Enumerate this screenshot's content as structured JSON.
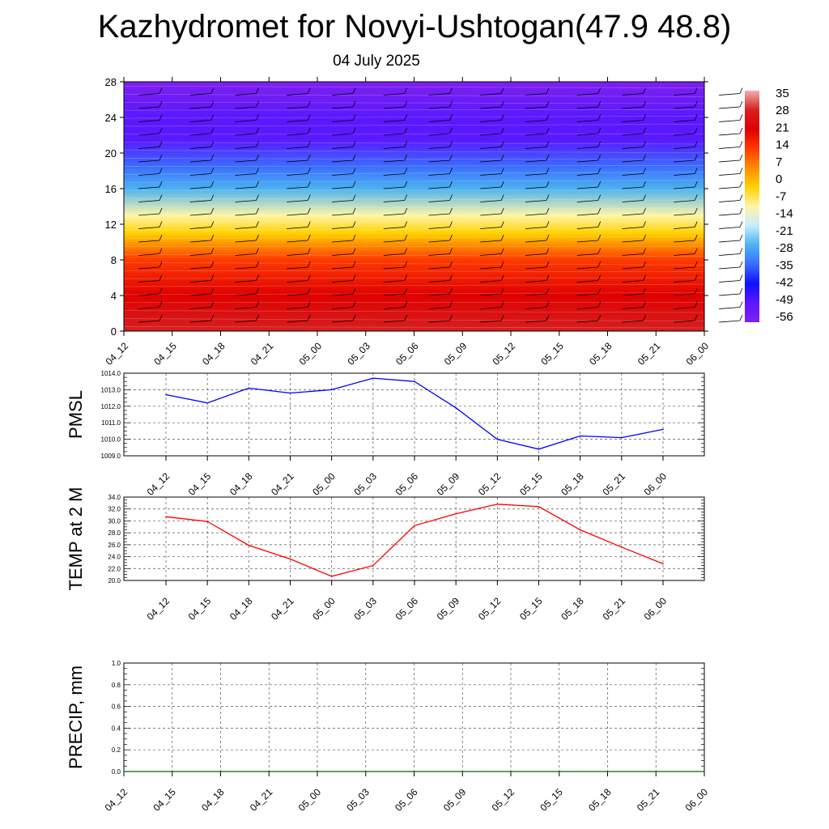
{
  "title": "Kazhydromet for Novyi-Ushtogan(47.9 48.8)",
  "subtitle": "04 July 2025",
  "time_labels": [
    "04_12",
    "04_15",
    "04_18",
    "04_21",
    "05_00",
    "05_03",
    "05_06",
    "05_09",
    "05_12",
    "05_15",
    "05_18",
    "05_21",
    "06_00"
  ],
  "colors": {
    "pmsl_line": "#0000ff",
    "temp_line": "#ff0000",
    "precip_line": "#006400",
    "palette": [
      "#7f1fef",
      "#5a18ff",
      "#1010ff",
      "#3a6cff",
      "#4bb2f0",
      "#c8ecff",
      "#fff5a8",
      "#ffd200",
      "#ff8c00",
      "#ff3a00",
      "#e00000",
      "#d62020",
      "#f0b0b0"
    ]
  },
  "chart_data": [
    {
      "type": "heatmap",
      "variable": "temperature with wind barbs",
      "x": [
        "04_12",
        "04_15",
        "04_18",
        "04_21",
        "05_00",
        "05_03",
        "05_06",
        "05_09",
        "05_12",
        "05_15",
        "05_18",
        "05_21",
        "06_00"
      ],
      "yticks": [
        0,
        4,
        8,
        12,
        16,
        20,
        24,
        28
      ],
      "ylim": [
        0,
        28
      ],
      "colorbar_ticks": [
        35,
        28,
        21,
        14,
        7,
        0,
        -7,
        -14,
        -21,
        -28,
        -35,
        -42,
        -49,
        -56
      ],
      "temperature_profile": [
        {
          "level": 0,
          "value": 28
        },
        {
          "level": 4,
          "value": 21
        },
        {
          "level": 8,
          "value": 11
        },
        {
          "level": 11,
          "value": -4
        },
        {
          "level": 13,
          "value": -14
        },
        {
          "level": 16,
          "value": -28
        },
        {
          "level": 18.5,
          "value": -38
        },
        {
          "level": 21.5,
          "value": -56
        },
        {
          "level": 24,
          "value": -52
        },
        {
          "level": 28,
          "value": -60
        }
      ],
      "legend": "right colorbar"
    },
    {
      "type": "line",
      "ylabel": "PMSL",
      "x": [
        "04_12",
        "04_15",
        "04_18",
        "04_21",
        "05_00",
        "05_03",
        "05_06",
        "05_09",
        "05_12",
        "05_15",
        "05_18",
        "05_21",
        "06_00"
      ],
      "values": [
        1012.7,
        1012.2,
        1013.1,
        1012.8,
        1013.0,
        1013.7,
        1013.5,
        1011.9,
        1010.0,
        1009.4,
        1010.2,
        1010.1,
        1010.6
      ],
      "yticks": [
        "1009.0",
        "1010.0",
        "1011.0",
        "1012.0",
        "1013.0",
        "1014.0"
      ],
      "ylim": [
        1009,
        1014
      ],
      "grid": true
    },
    {
      "type": "line",
      "ylabel": "TEMP at 2 M",
      "x": [
        "04_12",
        "04_15",
        "04_18",
        "04_21",
        "05_00",
        "05_03",
        "05_06",
        "05_09",
        "05_12",
        "05_15",
        "05_18",
        "05_21",
        "06_00"
      ],
      "values": [
        30.7,
        29.9,
        25.9,
        23.6,
        20.7,
        22.5,
        29.2,
        31.2,
        32.8,
        32.4,
        28.5,
        25.6,
        22.8
      ],
      "yticks": [
        "20.0",
        "22.0",
        "24.0",
        "26.0",
        "28.0",
        "30.0",
        "32.0",
        "34.0"
      ],
      "ylim": [
        20,
        34
      ],
      "grid": true
    },
    {
      "type": "line",
      "ylabel": "PRECIP, mm",
      "x": [
        "04_12",
        "04_15",
        "04_18",
        "04_21",
        "05_00",
        "05_03",
        "05_06",
        "05_09",
        "05_12",
        "05_15",
        "05_18",
        "05_21",
        "06_00"
      ],
      "values": [
        0,
        0,
        0,
        0,
        0,
        0,
        0,
        0,
        0,
        0,
        0,
        0,
        0
      ],
      "yticks": [
        "0.0",
        "0.2",
        "0.4",
        "0.6",
        "0.8",
        "1.0"
      ],
      "ylim": [
        0,
        1
      ],
      "grid": true
    }
  ]
}
